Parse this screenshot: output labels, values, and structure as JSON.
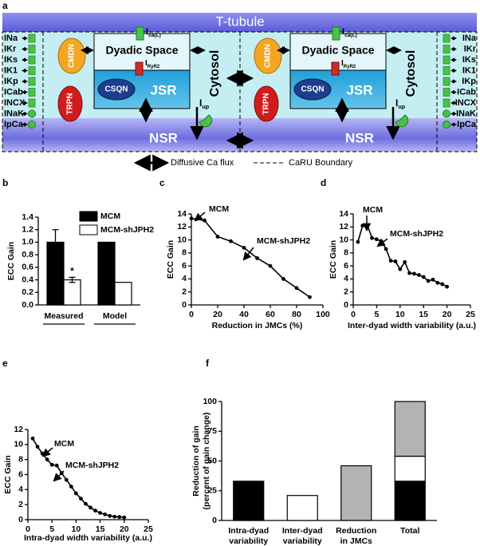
{
  "diagram": {
    "panel": "a",
    "t_tubule": "T-tubule",
    "dyadic_space": "Dyadic Space",
    "cytosol": "Cytosol",
    "jsr": "JSR",
    "nsr": "NSR",
    "cmdn": "CMDN",
    "trpn": "TRPN",
    "csqn": "CSQN",
    "i_cal": {
      "main": "I",
      "sub": "ca(L)"
    },
    "i_ryr2": {
      "main": "I",
      "sub": "RyR2"
    },
    "i_up": {
      "main": "I",
      "sub": "up"
    },
    "currents": [
      "INa",
      "IKr",
      "IKs",
      "IK1",
      "IKp",
      "ICab",
      "INCX",
      "INaK",
      "IpCa"
    ],
    "legend": {
      "diffusive": "Diffusive Ca flux",
      "boundary": "CaRU Boundary"
    }
  },
  "chart_data": [
    {
      "panel": "b",
      "type": "bar",
      "ylabel": "ECC Gain",
      "categories": [
        "Measured",
        "Model"
      ],
      "series": [
        {
          "name": "MCM",
          "color": "#000000",
          "values": [
            1.0,
            1.0
          ],
          "errors": [
            0.2,
            null
          ]
        },
        {
          "name": "MCM-shJPH2",
          "color": "#ffffff",
          "values": [
            0.4,
            0.36
          ],
          "errors": [
            0.04,
            null
          ]
        }
      ],
      "ylim": [
        0,
        1.4
      ],
      "yticks": [
        {
          "value": 0,
          "label": "0.0"
        },
        0.2,
        0.4,
        0.6,
        0.8,
        {
          "value": 1,
          "label": "1.0"
        },
        1.2,
        1.4
      ],
      "annotations": [
        "*"
      ]
    },
    {
      "panel": "c",
      "type": "line",
      "xlabel": "Reduction in JMCs (%)",
      "ylabel": "ECC Gain",
      "x": [
        0,
        10,
        20,
        30,
        40,
        50,
        60,
        70,
        80,
        90
      ],
      "values": [
        13.3,
        13.0,
        10.5,
        9.8,
        8.8,
        7.2,
        6.0,
        4.0,
        2.6,
        1.2
      ],
      "color": "#000000",
      "xlim": [
        0,
        100
      ],
      "xticks": [
        0,
        20,
        40,
        60,
        80,
        100
      ],
      "ylim": [
        0,
        14
      ],
      "yticks": [
        0,
        2,
        4,
        6,
        8,
        10,
        12,
        14
      ],
      "annotations": [
        "MCM",
        "MCM-shJPH2"
      ]
    },
    {
      "panel": "d",
      "type": "line",
      "xlabel": "Inter-dyad width variability (a.u.)",
      "ylabel": "ECC Gain",
      "x": [
        1,
        2,
        3,
        4,
        5,
        6,
        7,
        8,
        9,
        10,
        11,
        12,
        13,
        14,
        15,
        16,
        17,
        18,
        19,
        20
      ],
      "values": [
        9.7,
        12.2,
        12.3,
        10.3,
        10.1,
        9.8,
        8.6,
        6.8,
        6.7,
        5.5,
        6.6,
        4.9,
        4.8,
        4.6,
        4.3,
        3.7,
        3.9,
        3.4,
        3.2,
        2.8
      ],
      "color": "#000000",
      "xlim": [
        0,
        25
      ],
      "xticks": [
        0,
        5,
        10,
        15,
        20,
        25
      ],
      "ylim": [
        0,
        14
      ],
      "yticks": [
        0,
        2,
        4,
        6,
        8,
        10,
        12,
        14
      ],
      "annotations": [
        "MCM",
        "MCM-shJPH2"
      ]
    },
    {
      "panel": "e",
      "type": "line",
      "xlabel": "Intra-dyad width variability (a.u.)",
      "ylabel": "ECC Gain",
      "x": [
        1,
        2,
        3,
        4,
        5,
        6,
        7,
        8,
        9,
        10,
        11,
        12,
        13,
        14,
        15,
        16,
        17,
        18,
        19,
        20
      ],
      "values": [
        10.8,
        9.7,
        8.8,
        8.0,
        7.3,
        7.2,
        6.2,
        5.3,
        4.4,
        3.5,
        2.8,
        2.1,
        1.6,
        1.2,
        0.9,
        0.7,
        0.5,
        0.4,
        0.35,
        0.3
      ],
      "color": "#000000",
      "xlim": [
        0,
        25
      ],
      "xticks": [
        0,
        5,
        10,
        15,
        20,
        25
      ],
      "ylim": [
        0,
        12
      ],
      "yticks": [
        0,
        2,
        4,
        6,
        8,
        10,
        12
      ],
      "annotations": [
        "MCM",
        "MCM-shJPH2"
      ]
    },
    {
      "panel": "f",
      "type": "stacked-bar",
      "ylabel": [
        "Reduction of gain",
        "(percent of gain change)"
      ],
      "categories": [
        [
          "Intra-dyad",
          "variability"
        ],
        [
          "Inter-dyad",
          "variability"
        ],
        [
          "Reduction",
          "in JMCs"
        ],
        [
          "Total"
        ]
      ],
      "series": [
        {
          "color": "#000000",
          "values": [
            33,
            null,
            null,
            33
          ]
        },
        {
          "color": "#ffffff",
          "values": [
            null,
            21,
            null,
            21
          ]
        },
        {
          "color": "#b3b3b3",
          "values": [
            null,
            null,
            46,
            46
          ]
        }
      ],
      "ylim": [
        0,
        100
      ],
      "yticks": [
        0,
        25,
        50,
        75,
        100
      ]
    }
  ]
}
